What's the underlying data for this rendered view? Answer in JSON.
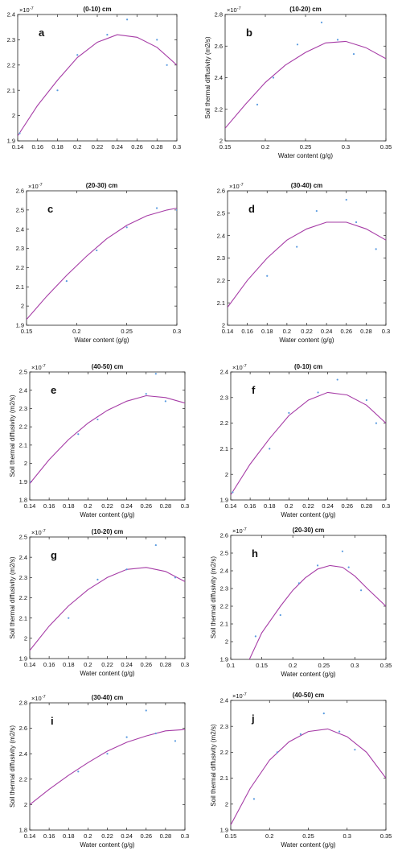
{
  "colors": {
    "curve": "#a63ca6",
    "point": "#5a9be0",
    "axis": "#222222",
    "text": "#111111"
  },
  "chart_data": [
    {
      "type": "scatter",
      "panel_label": "a",
      "title": "(0-10) cm",
      "xlabel": "",
      "ylabel": "",
      "exponent": "×10",
      "xlim": [
        0.14,
        0.3
      ],
      "ylim": [
        1.9,
        2.4
      ],
      "xticks": [
        0.14,
        0.16,
        0.18,
        0.2,
        0.22,
        0.24,
        0.26,
        0.28,
        0.3
      ],
      "yticks": [
        1.9,
        2,
        2.1,
        2.2,
        2.3,
        2.4
      ],
      "xtick_labels": [
        "0.14",
        "0.16",
        "0.18",
        "0.2",
        "0.22",
        "0.24",
        "0.26",
        "0.28",
        "0.3"
      ],
      "ytick_labels": [
        "1.9",
        "2",
        "2.1",
        "2.2",
        "2.3",
        "2.4"
      ],
      "points": [
        [
          0.142,
          1.93
        ],
        [
          0.18,
          2.1
        ],
        [
          0.2,
          2.24
        ],
        [
          0.23,
          2.32
        ],
        [
          0.25,
          2.38
        ],
        [
          0.28,
          2.3
        ],
        [
          0.29,
          2.2
        ]
      ],
      "curve": [
        [
          0.14,
          1.92
        ],
        [
          0.16,
          2.04
        ],
        [
          0.18,
          2.14
        ],
        [
          0.2,
          2.23
        ],
        [
          0.22,
          2.29
        ],
        [
          0.24,
          2.32
        ],
        [
          0.26,
          2.31
        ],
        [
          0.28,
          2.27
        ],
        [
          0.3,
          2.2
        ]
      ]
    },
    {
      "type": "scatter",
      "panel_label": "b",
      "title": "(10-20) cm",
      "xlabel": "Water content (g/g)",
      "ylabel": "Soil thermal diffusivity (m2/s)",
      "exponent": "×10",
      "xlim": [
        0.15,
        0.35
      ],
      "ylim": [
        2.0,
        2.8
      ],
      "xticks": [
        0.15,
        0.2,
        0.25,
        0.3,
        0.35
      ],
      "yticks": [
        2,
        2.2,
        2.4,
        2.6,
        2.8
      ],
      "xtick_labels": [
        "0.15",
        "0.2",
        "0.25",
        "0.3",
        "0.35"
      ],
      "ytick_labels": [
        "2",
        "2.2",
        "2.4",
        "2.6",
        "2.8"
      ],
      "points": [
        [
          0.19,
          2.23
        ],
        [
          0.21,
          2.4
        ],
        [
          0.24,
          2.61
        ],
        [
          0.27,
          2.75
        ],
        [
          0.29,
          2.64
        ],
        [
          0.31,
          2.55
        ]
      ],
      "curve": [
        [
          0.15,
          2.08
        ],
        [
          0.175,
          2.23
        ],
        [
          0.2,
          2.37
        ],
        [
          0.225,
          2.48
        ],
        [
          0.25,
          2.56
        ],
        [
          0.275,
          2.62
        ],
        [
          0.3,
          2.63
        ],
        [
          0.325,
          2.59
        ],
        [
          0.35,
          2.52
        ]
      ]
    },
    {
      "type": "scatter",
      "panel_label": "c",
      "title": "(20-30) cm",
      "xlabel": "Water content (g/g)",
      "ylabel": "",
      "exponent": "×10",
      "xlim": [
        0.15,
        0.3
      ],
      "ylim": [
        1.9,
        2.6
      ],
      "xticks": [
        0.15,
        0.2,
        0.25,
        0.3
      ],
      "yticks": [
        1.9,
        2,
        2.1,
        2.2,
        2.3,
        2.4,
        2.5,
        2.6
      ],
      "xtick_labels": [
        "0.15",
        "0.2",
        "0.25",
        "0.3"
      ],
      "ytick_labels": [
        "1.9",
        "2",
        "2.1",
        "2.2",
        "2.3",
        "2.4",
        "2.5",
        "2.6"
      ],
      "points": [
        [
          0.19,
          2.13
        ],
        [
          0.22,
          2.29
        ],
        [
          0.25,
          2.41
        ],
        [
          0.28,
          2.51
        ],
        [
          0.3,
          2.5
        ]
      ],
      "curve": [
        [
          0.15,
          1.93
        ],
        [
          0.17,
          2.05
        ],
        [
          0.19,
          2.16
        ],
        [
          0.21,
          2.26
        ],
        [
          0.23,
          2.35
        ],
        [
          0.25,
          2.42
        ],
        [
          0.27,
          2.47
        ],
        [
          0.29,
          2.5
        ],
        [
          0.3,
          2.51
        ]
      ]
    },
    {
      "type": "scatter",
      "panel_label": "d",
      "title": "(30-40) cm",
      "xlabel": "Water content (g/g)",
      "ylabel": "",
      "exponent": "×10",
      "xlim": [
        0.14,
        0.3
      ],
      "ylim": [
        2.0,
        2.6
      ],
      "xticks": [
        0.14,
        0.16,
        0.18,
        0.2,
        0.22,
        0.24,
        0.26,
        0.28,
        0.3
      ],
      "yticks": [
        2,
        2.1,
        2.2,
        2.3,
        2.4,
        2.5,
        2.6
      ],
      "xtick_labels": [
        "0.14",
        "0.16",
        "0.18",
        "0.2",
        "0.22",
        "0.24",
        "0.26",
        "0.28",
        "0.3"
      ],
      "ytick_labels": [
        "2",
        "2.1",
        "2.2",
        "2.3",
        "2.4",
        "2.5",
        "2.6"
      ],
      "points": [
        [
          0.18,
          2.22
        ],
        [
          0.21,
          2.35
        ],
        [
          0.23,
          2.51
        ],
        [
          0.26,
          2.56
        ],
        [
          0.27,
          2.46
        ],
        [
          0.29,
          2.34
        ]
      ],
      "curve": [
        [
          0.14,
          2.08
        ],
        [
          0.16,
          2.2
        ],
        [
          0.18,
          2.3
        ],
        [
          0.2,
          2.38
        ],
        [
          0.22,
          2.43
        ],
        [
          0.24,
          2.46
        ],
        [
          0.26,
          2.46
        ],
        [
          0.28,
          2.43
        ],
        [
          0.3,
          2.38
        ]
      ]
    },
    {
      "type": "scatter",
      "panel_label": "e",
      "title": "(40-50) cm",
      "xlabel": "Water content (g/g)",
      "ylabel": "Soil thermal diffusivity (m2/s)",
      "exponent": "×10",
      "xlim": [
        0.14,
        0.3
      ],
      "ylim": [
        1.8,
        2.5
      ],
      "xticks": [
        0.14,
        0.16,
        0.18,
        0.2,
        0.22,
        0.24,
        0.26,
        0.28,
        0.3
      ],
      "yticks": [
        1.8,
        1.9,
        2,
        2.1,
        2.2,
        2.3,
        2.4,
        2.5
      ],
      "xtick_labels": [
        "0.14",
        "0.16",
        "0.18",
        "0.2",
        "0.22",
        "0.24",
        "0.26",
        "0.28",
        "0.3"
      ],
      "ytick_labels": [
        "1.8",
        "1.9",
        "2",
        "2.1",
        "2.2",
        "2.3",
        "2.4",
        "2.5"
      ],
      "points": [
        [
          0.14,
          1.9
        ],
        [
          0.19,
          2.16
        ],
        [
          0.21,
          2.24
        ],
        [
          0.26,
          2.38
        ],
        [
          0.27,
          2.49
        ],
        [
          0.28,
          2.34
        ]
      ],
      "curve": [
        [
          0.14,
          1.89
        ],
        [
          0.16,
          2.02
        ],
        [
          0.18,
          2.13
        ],
        [
          0.2,
          2.22
        ],
        [
          0.22,
          2.29
        ],
        [
          0.24,
          2.34
        ],
        [
          0.26,
          2.37
        ],
        [
          0.28,
          2.36
        ],
        [
          0.3,
          2.33
        ]
      ]
    },
    {
      "type": "scatter",
      "panel_label": "f",
      "title": "(0-10) cm",
      "xlabel": "Water content (g/g)",
      "ylabel": "",
      "exponent": "×10",
      "xlim": [
        0.14,
        0.3
      ],
      "ylim": [
        1.9,
        2.4
      ],
      "xticks": [
        0.14,
        0.16,
        0.18,
        0.2,
        0.22,
        0.24,
        0.26,
        0.28,
        0.3
      ],
      "yticks": [
        1.9,
        2,
        2.1,
        2.2,
        2.3,
        2.4
      ],
      "xtick_labels": [
        "0.14",
        "0.16",
        "0.18",
        "0.2",
        "0.22",
        "0.24",
        "0.26",
        "0.28",
        "0.3"
      ],
      "ytick_labels": [
        "1.9",
        "2",
        "2.1",
        "2.2",
        "2.3",
        "2.4"
      ],
      "points": [
        [
          0.142,
          1.93
        ],
        [
          0.18,
          2.1
        ],
        [
          0.2,
          2.24
        ],
        [
          0.23,
          2.32
        ],
        [
          0.25,
          2.37
        ],
        [
          0.28,
          2.29
        ],
        [
          0.29,
          2.2
        ]
      ],
      "curve": [
        [
          0.14,
          1.92
        ],
        [
          0.16,
          2.04
        ],
        [
          0.18,
          2.14
        ],
        [
          0.2,
          2.23
        ],
        [
          0.22,
          2.29
        ],
        [
          0.24,
          2.32
        ],
        [
          0.26,
          2.31
        ],
        [
          0.28,
          2.27
        ],
        [
          0.3,
          2.2
        ]
      ]
    },
    {
      "type": "scatter",
      "panel_label": "g",
      "title": "(10-20) cm",
      "xlabel": "Water content (g/g)",
      "ylabel": "Soil thermal diffusivity (m2/s)",
      "exponent": "×10",
      "xlim": [
        0.14,
        0.3
      ],
      "ylim": [
        1.9,
        2.5
      ],
      "xticks": [
        0.14,
        0.16,
        0.18,
        0.2,
        0.22,
        0.24,
        0.26,
        0.28,
        0.3
      ],
      "yticks": [
        1.9,
        2,
        2.1,
        2.2,
        2.3,
        2.4,
        2.5
      ],
      "xtick_labels": [
        "0.14",
        "0.16",
        "0.18",
        "0.2",
        "0.22",
        "0.24",
        "0.26",
        "0.28",
        "0.3"
      ],
      "ytick_labels": [
        "1.9",
        "2",
        "2.1",
        "2.2",
        "2.3",
        "2.4",
        "2.5"
      ],
      "points": [
        [
          0.18,
          2.1
        ],
        [
          0.21,
          2.29
        ],
        [
          0.24,
          2.34
        ],
        [
          0.27,
          2.46
        ],
        [
          0.29,
          2.3
        ]
      ],
      "curve": [
        [
          0.14,
          1.94
        ],
        [
          0.16,
          2.06
        ],
        [
          0.18,
          2.16
        ],
        [
          0.2,
          2.24
        ],
        [
          0.22,
          2.3
        ],
        [
          0.24,
          2.34
        ],
        [
          0.26,
          2.35
        ],
        [
          0.28,
          2.33
        ],
        [
          0.3,
          2.28
        ]
      ]
    },
    {
      "type": "scatter",
      "panel_label": "h",
      "title": "(20-30) cm",
      "xlabel": "Water content (g/g)",
      "ylabel": "Soil thermal diffusivity (m2/s)",
      "exponent": "×10",
      "xlim": [
        0.1,
        0.35
      ],
      "ylim": [
        1.9,
        2.6
      ],
      "xticks": [
        0.1,
        0.15,
        0.2,
        0.25,
        0.3,
        0.35
      ],
      "yticks": [
        1.9,
        2,
        2.1,
        2.2,
        2.3,
        2.4,
        2.5,
        2.6
      ],
      "xtick_labels": [
        "0.1",
        "0.15",
        "0.2",
        "0.25",
        "0.3",
        "0.35"
      ],
      "ytick_labels": [
        "1.9",
        "2",
        "2.1",
        "2.2",
        "2.3",
        "2.4",
        "2.5",
        "2.6"
      ],
      "points": [
        [
          0.14,
          2.03
        ],
        [
          0.18,
          2.15
        ],
        [
          0.21,
          2.33
        ],
        [
          0.24,
          2.43
        ],
        [
          0.28,
          2.51
        ],
        [
          0.29,
          2.42
        ],
        [
          0.31,
          2.29
        ]
      ],
      "curve": [
        [
          0.13,
          1.9
        ],
        [
          0.15,
          2.05
        ],
        [
          0.18,
          2.2
        ],
        [
          0.2,
          2.29
        ],
        [
          0.22,
          2.36
        ],
        [
          0.24,
          2.41
        ],
        [
          0.26,
          2.43
        ],
        [
          0.28,
          2.42
        ],
        [
          0.3,
          2.37
        ],
        [
          0.32,
          2.3
        ],
        [
          0.35,
          2.2
        ]
      ]
    },
    {
      "type": "scatter",
      "panel_label": "i",
      "title": "(30-40) cm",
      "xlabel": "Water content (g/g)",
      "ylabel": "Soil thermal diffusivity (m2/s)",
      "exponent": "×10",
      "xlim": [
        0.14,
        0.3
      ],
      "ylim": [
        1.8,
        2.8
      ],
      "xticks": [
        0.14,
        0.16,
        0.18,
        0.2,
        0.22,
        0.24,
        0.26,
        0.28,
        0.3
      ],
      "yticks": [
        1.8,
        2,
        2.2,
        2.4,
        2.6,
        2.8
      ],
      "xtick_labels": [
        "0.14",
        "0.16",
        "0.18",
        "0.2",
        "0.22",
        "0.24",
        "0.26",
        "0.28",
        "0.3"
      ],
      "ytick_labels": [
        "1.8",
        "2",
        "2.2",
        "2.4",
        "2.6",
        "2.8"
      ],
      "points": [
        [
          0.19,
          2.26
        ],
        [
          0.22,
          2.4
        ],
        [
          0.24,
          2.53
        ],
        [
          0.26,
          2.74
        ],
        [
          0.27,
          2.56
        ],
        [
          0.29,
          2.5
        ]
      ],
      "curve": [
        [
          0.14,
          2.0
        ],
        [
          0.16,
          2.12
        ],
        [
          0.18,
          2.23
        ],
        [
          0.2,
          2.33
        ],
        [
          0.22,
          2.42
        ],
        [
          0.24,
          2.49
        ],
        [
          0.26,
          2.54
        ],
        [
          0.28,
          2.58
        ],
        [
          0.3,
          2.59
        ]
      ]
    },
    {
      "type": "scatter",
      "panel_label": "j",
      "title": "(40-50) cm",
      "xlabel": "Water content (g/g)",
      "ylabel": "Soil thermal diffusivity (m2/s)",
      "exponent": "×10",
      "xlim": [
        0.15,
        0.35
      ],
      "ylim": [
        1.9,
        2.4
      ],
      "xticks": [
        0.15,
        0.2,
        0.25,
        0.3,
        0.35
      ],
      "yticks": [
        1.9,
        2,
        2.1,
        2.2,
        2.3,
        2.4
      ],
      "xtick_labels": [
        "0.15",
        "0.2",
        "0.25",
        "0.3",
        "0.35"
      ],
      "ytick_labels": [
        "1.9",
        "2",
        "2.1",
        "2.2",
        "2.3",
        "2.4"
      ],
      "points": [
        [
          0.18,
          2.02
        ],
        [
          0.21,
          2.2
        ],
        [
          0.24,
          2.27
        ],
        [
          0.27,
          2.35
        ],
        [
          0.29,
          2.28
        ],
        [
          0.31,
          2.21
        ]
      ],
      "curve": [
        [
          0.15,
          1.92
        ],
        [
          0.175,
          2.06
        ],
        [
          0.2,
          2.17
        ],
        [
          0.225,
          2.24
        ],
        [
          0.25,
          2.28
        ],
        [
          0.275,
          2.29
        ],
        [
          0.3,
          2.26
        ],
        [
          0.325,
          2.2
        ],
        [
          0.35,
          2.1
        ]
      ]
    }
  ]
}
